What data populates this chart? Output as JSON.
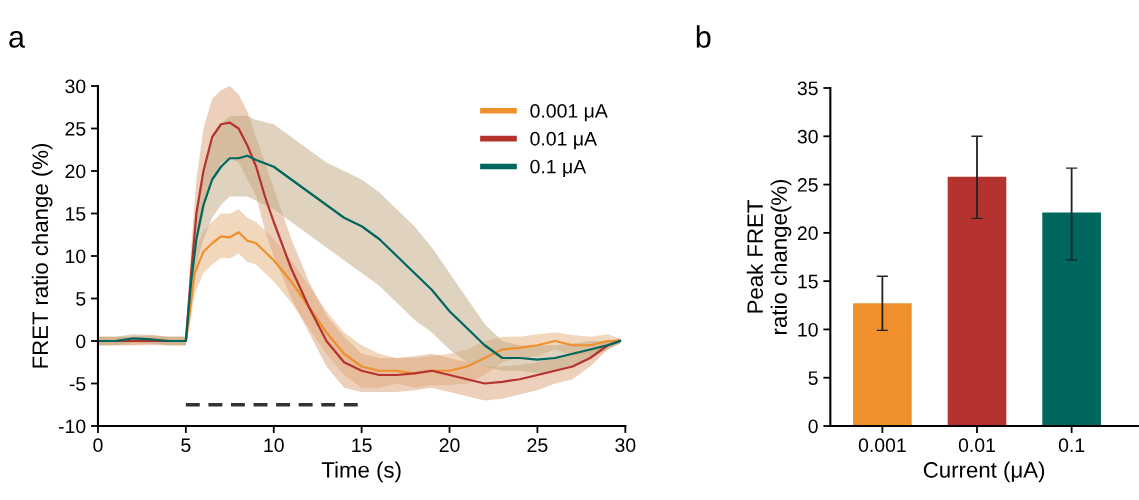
{
  "chart_data": [
    {
      "type": "line",
      "title": "a",
      "xlabel": "Time (s)",
      "ylabel": "FRET ratio change (%)",
      "xlim": [
        0,
        30
      ],
      "xticks": [
        0,
        5,
        10,
        15,
        20,
        25,
        30
      ],
      "ylim": [
        -10,
        30
      ],
      "yticks": [
        -10,
        -5,
        0,
        5,
        10,
        15,
        20,
        25,
        30
      ],
      "grid": false,
      "legend": "top right",
      "marker": "none",
      "line_style": "solid",
      "series": [
        {
          "name": "0.001 μA",
          "color": "#f0902c",
          "x": [
            0,
            1,
            2,
            3,
            4,
            5,
            5.2,
            5.5,
            6,
            6.5,
            7,
            7.5,
            8,
            8.5,
            9,
            9.5,
            10,
            11,
            12,
            13,
            14,
            15,
            16,
            17,
            18,
            19,
            20,
            21,
            22,
            23,
            24,
            25,
            26,
            27,
            28,
            29,
            29.7
          ],
          "values": [
            0,
            0,
            0,
            0.2,
            0,
            0,
            3,
            8,
            10.5,
            11.5,
            12.3,
            12.2,
            12.8,
            11.8,
            11.5,
            10.5,
            9.5,
            7,
            4,
            1,
            -1.5,
            -3,
            -3.5,
            -3.5,
            -3.8,
            -3.5,
            -3.5,
            -3,
            -2,
            -1,
            -0.8,
            -0.5,
            0,
            -0.5,
            -0.5,
            0,
            0
          ],
          "upper": [
            0.5,
            0.5,
            0.5,
            0.7,
            0.5,
            0.5,
            4.5,
            10.5,
            13,
            14,
            15,
            15,
            15.5,
            14.5,
            14,
            13,
            12,
            9.5,
            6.5,
            3.5,
            1,
            -0.5,
            -1.5,
            -2,
            -2,
            -1.8,
            -1.5,
            -1,
            0,
            0.5,
            0.5,
            0.8,
            1,
            0.7,
            0.5,
            0.8,
            0.3
          ],
          "lower": [
            -0.5,
            -0.5,
            -0.5,
            -0.3,
            -0.5,
            -0.5,
            1.5,
            5.5,
            8,
            9,
            9.8,
            9.7,
            10.3,
            9.3,
            9,
            8,
            7,
            4.5,
            1.5,
            -1.5,
            -4,
            -5.5,
            -5.5,
            -5,
            -5.5,
            -5.2,
            -5.2,
            -5,
            -4,
            -2.5,
            -2,
            -1.8,
            -1,
            -1.7,
            -1.5,
            -0.8,
            -0.3
          ]
        },
        {
          "name": "0.01 μA",
          "color": "#b5332e",
          "x": [
            0,
            1,
            2,
            3,
            4,
            5,
            5.3,
            5.6,
            6,
            6.5,
            7,
            7.5,
            8,
            8.5,
            9,
            9.5,
            10,
            11,
            12,
            13,
            14,
            15,
            16,
            17,
            18,
            19,
            20,
            21,
            22,
            23,
            24,
            25,
            26,
            27,
            28,
            29,
            29.7
          ],
          "values": [
            0,
            0,
            0,
            0,
            0,
            0,
            8,
            15,
            20,
            24,
            25.5,
            25.7,
            25,
            23,
            20.5,
            17,
            14,
            8.5,
            4,
            0,
            -2.5,
            -3.5,
            -4,
            -4,
            -3.8,
            -3.5,
            -4,
            -4.5,
            -5,
            -4.8,
            -4.5,
            -4,
            -3.5,
            -3,
            -2,
            -0.5,
            0
          ],
          "upper": [
            0.5,
            0.5,
            0.5,
            0.5,
            0.5,
            0.5,
            11,
            19,
            25,
            28.5,
            29.5,
            30,
            29,
            27,
            24,
            21,
            18,
            12,
            7,
            3,
            0.5,
            -1.5,
            -2,
            -2,
            -1.8,
            -1.5,
            -2,
            -2.5,
            -3,
            -3,
            -2.8,
            -2.5,
            -2,
            -1.5,
            -1,
            0,
            0.3
          ],
          "lower": [
            -0.5,
            -0.5,
            -0.5,
            -0.5,
            -0.5,
            -0.5,
            5,
            11,
            15,
            19,
            21,
            21.5,
            21,
            19,
            17,
            13,
            10,
            5,
            1,
            -3,
            -5.5,
            -6,
            -6,
            -6,
            -5.8,
            -5.5,
            -6,
            -6.5,
            -7,
            -6.8,
            -6.3,
            -5.8,
            -5,
            -4.5,
            -3,
            -1,
            -0.3
          ]
        },
        {
          "name": "0.1 μA",
          "color": "#00675f",
          "x": [
            0,
            1,
            2,
            3,
            4,
            5,
            5.3,
            5.6,
            6,
            6.5,
            7,
            7.5,
            8,
            8.5,
            9,
            10,
            11,
            12,
            13,
            14,
            15,
            16,
            17,
            18,
            19,
            20,
            21,
            22,
            23,
            24,
            25,
            26,
            27,
            28,
            29,
            29.7
          ],
          "values": [
            0,
            0,
            0.3,
            0.2,
            0,
            0,
            7,
            12,
            16,
            19,
            20.5,
            21.5,
            21.5,
            21.8,
            21.3,
            20.5,
            19,
            17.5,
            16,
            14.5,
            13.5,
            12,
            10,
            8,
            6,
            3.5,
            1.5,
            -0.5,
            -2,
            -2,
            -2.2,
            -2,
            -1.5,
            -1,
            -0.5,
            0
          ],
          "upper": [
            0.5,
            0.5,
            0.8,
            0.7,
            0.5,
            0.5,
            9,
            15,
            20,
            23.5,
            25.5,
            26.5,
            26.5,
            26.5,
            26,
            25.5,
            24,
            22.5,
            21,
            20,
            19,
            17.5,
            15.5,
            13.5,
            11,
            8,
            5,
            2,
            0,
            -0.5,
            -0.5,
            -0.5,
            -0.3,
            0,
            0,
            0.3
          ],
          "lower": [
            -0.5,
            -0.5,
            -0.2,
            -0.3,
            -0.5,
            -0.5,
            5,
            9,
            12,
            14.5,
            16,
            17,
            17,
            17,
            16.5,
            15.5,
            14,
            12.5,
            11,
            9.5,
            8,
            6.5,
            4.5,
            2.5,
            1,
            -1,
            -2.5,
            -3,
            -3.5,
            -3.5,
            -3.8,
            -3.5,
            -3,
            -2,
            -1,
            -0.3
          ]
        },
        {
          "color": "#333333",
          "line_style": "dashed",
          "x": [
            5,
            15
          ],
          "values": [
            -7.5,
            -7.5
          ]
        }
      ]
    },
    {
      "type": "bar",
      "title": "b",
      "xlabel": "Current (μA)",
      "ylabel": "Peak FRET\nratio change(%)",
      "categories": [
        "0.001",
        "0.01",
        "0.1"
      ],
      "values": [
        12.7,
        25.8,
        22.1
      ],
      "colors": [
        "#f0902c",
        "#b5332e",
        "#00675f"
      ],
      "errors": [
        [
          9.9,
          15.5
        ],
        [
          21.5,
          30
        ],
        [
          17.2,
          26.7
        ]
      ],
      "ylim": [
        0,
        35
      ],
      "yticks": [
        0,
        5,
        10,
        15,
        20,
        25,
        30,
        35
      ],
      "grid": false,
      "legend": false
    }
  ]
}
